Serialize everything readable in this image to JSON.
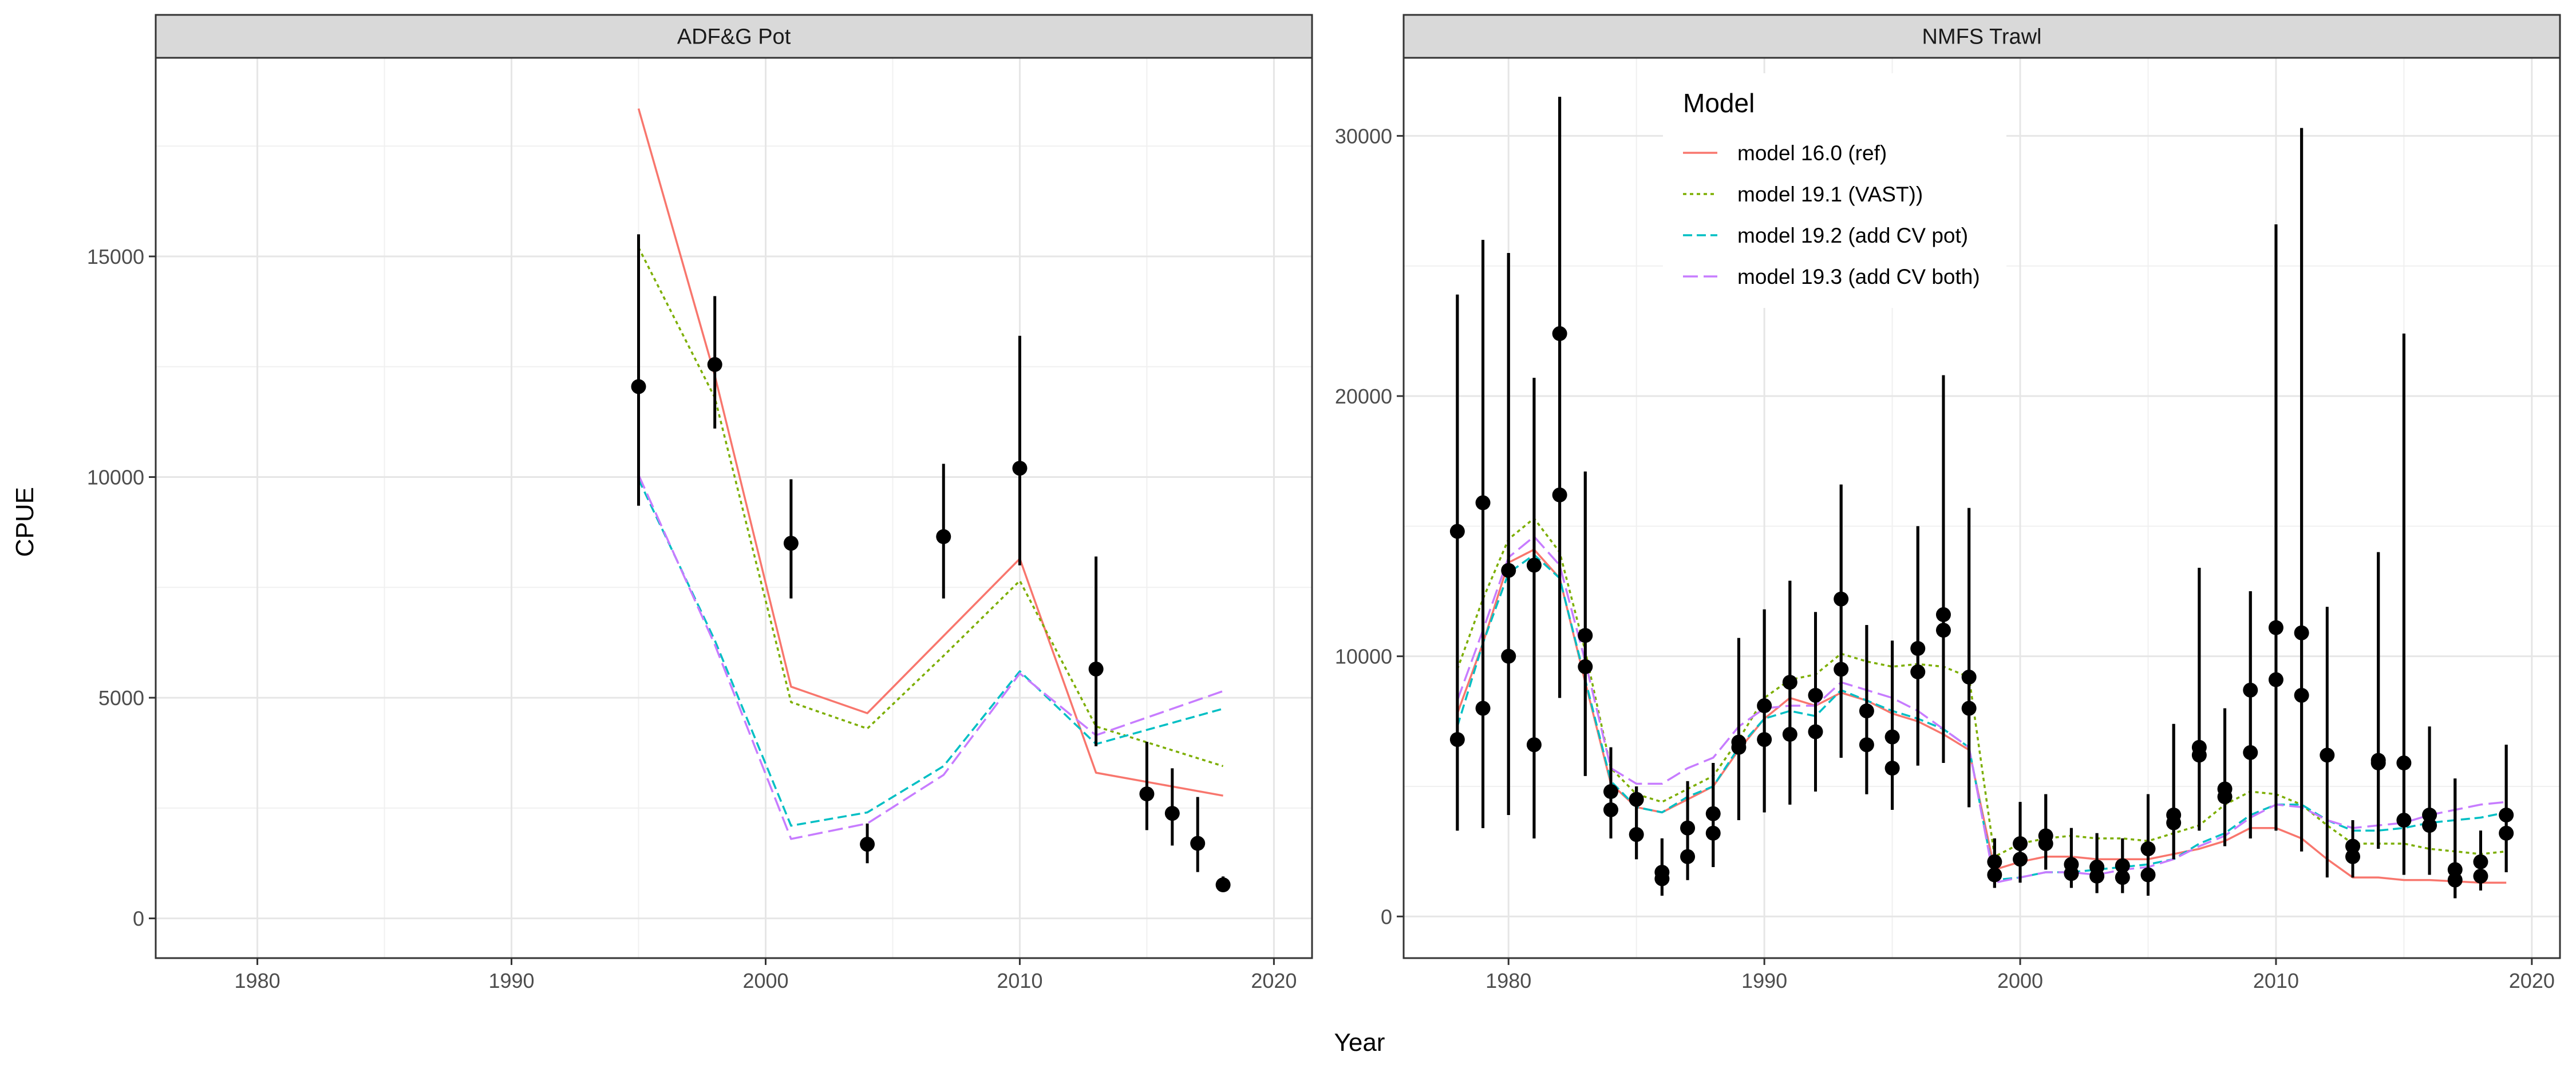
{
  "axis_titles": {
    "x": "Year",
    "y": "CPUE"
  },
  "legend": {
    "title": "Model",
    "entries": [
      {
        "label": "model 16.0 (ref)",
        "color": "#F8766D",
        "dash": "solid"
      },
      {
        "label": "model 19.1 (VAST))",
        "color": "#7CAE00",
        "dash": "dotted"
      },
      {
        "label": "model 19.2 (add CV pot)",
        "color": "#00BFC4",
        "dash": "dashed"
      },
      {
        "label": "model 19.3 (add CV both)",
        "color": "#C77CFF",
        "dash": "longdash"
      }
    ]
  },
  "chart_data": [
    {
      "type": "line",
      "title": "ADF&G Pot",
      "xlabel": "Year",
      "ylabel": "CPUE",
      "xlim": [
        1976,
        2021.5
      ],
      "ylim": [
        -900,
        19500
      ],
      "xticks": [
        1980,
        1990,
        2000,
        2010,
        2020
      ],
      "yticks": [
        0,
        5000,
        10000,
        15000
      ],
      "grid": true,
      "observed": {
        "x": [
          1995,
          1998,
          2001,
          2004,
          2007,
          2010,
          2013,
          2015,
          2016,
          2017,
          2018
        ],
        "y": [
          12050,
          12550,
          8500,
          1680,
          8650,
          10200,
          5650,
          2820,
          2380,
          1700,
          760
        ],
        "lower": [
          9350,
          11100,
          7250,
          1250,
          7250,
          8000,
          3900,
          2000,
          1650,
          1050,
          600
        ],
        "upper": [
          15500,
          14100,
          9950,
          2150,
          10300,
          13200,
          8200,
          4000,
          3400,
          2750,
          950
        ]
      },
      "series": [
        {
          "name": "model 16.0 (ref)",
          "x": [
            1995,
            1998,
            2001,
            2004,
            2007,
            2010,
            2013,
            2018
          ],
          "values": [
            18350,
            12300,
            5250,
            4650,
            6400,
            8150,
            3300,
            2780
          ]
        },
        {
          "name": "model 19.1 (VAST))",
          "x": [
            1995,
            1998,
            2001,
            2004,
            2007,
            2010,
            2013,
            2018
          ],
          "values": [
            15200,
            11800,
            4900,
            4300,
            5950,
            7650,
            4350,
            3450
          ]
        },
        {
          "name": "model 19.2 (add CV pot)",
          "x": [
            1995,
            1998,
            2001,
            2004,
            2007,
            2010,
            2013,
            2018
          ],
          "values": [
            9950,
            6300,
            2100,
            2400,
            3450,
            5600,
            3950,
            4750
          ]
        },
        {
          "name": "model 19.3 (add CV both)",
          "x": [
            1995,
            1998,
            2001,
            2004,
            2007,
            2010,
            2013,
            2018
          ],
          "values": [
            10050,
            6200,
            1800,
            2150,
            3250,
            5550,
            4150,
            5150
          ]
        }
      ]
    },
    {
      "type": "line",
      "title": "NMFS Trawl",
      "xlabel": "Year",
      "ylabel": "CPUE",
      "xlim": [
        1975.9,
        2021.1
      ],
      "ylim": [
        -1600,
        33000
      ],
      "xticks": [
        1980,
        1990,
        2000,
        2010,
        2020
      ],
      "yticks": [
        0,
        10000,
        20000,
        30000
      ],
      "grid": true,
      "legend_position": "top-left inside",
      "observed": {
        "x": [
          1978,
          1978,
          1979,
          1979,
          1980,
          1980,
          1981,
          1981,
          1982,
          1982,
          1983,
          1983,
          1984,
          1984,
          1985,
          1985,
          1986,
          1986,
          1987,
          1987,
          1988,
          1988,
          1989,
          1989,
          1990,
          1990,
          1991,
          1991,
          1992,
          1992,
          1993,
          1993,
          1994,
          1994,
          1995,
          1995,
          1996,
          1996,
          1997,
          1997,
          1998,
          1998,
          1999,
          1999,
          2000,
          2000,
          2001,
          2001,
          2002,
          2002,
          2003,
          2003,
          2004,
          2004,
          2005,
          2005,
          2006,
          2006,
          2007,
          2007,
          2008,
          2008,
          2009,
          2009,
          2010,
          2010,
          2011,
          2011,
          2012,
          2013,
          2013,
          2014,
          2014,
          2015,
          2015,
          2016,
          2016,
          2017,
          2017,
          2018,
          2018,
          2019,
          2019
        ],
        "y": [
          14800,
          6800,
          15900,
          8000,
          13300,
          10000,
          13500,
          6600,
          22400,
          16200,
          10800,
          9600,
          4800,
          4100,
          4500,
          3150,
          1700,
          1450,
          3400,
          2300,
          3950,
          3200,
          6700,
          6500,
          8100,
          6800,
          9000,
          7000,
          8500,
          7100,
          12200,
          9500,
          7900,
          6600,
          6900,
          5700,
          10300,
          9400,
          11600,
          11000,
          9200,
          8000,
          2100,
          1600,
          2800,
          2200,
          3100,
          2800,
          2000,
          1650,
          1900,
          1550,
          1950,
          1500,
          2600,
          1600,
          3900,
          3600,
          6500,
          6200,
          4900,
          4600,
          8700,
          6300,
          11100,
          9100,
          10900,
          8500,
          6200,
          2700,
          2300,
          6000,
          5900,
          5900,
          3700,
          3900,
          3500,
          1800,
          1400,
          2100,
          1550,
          3900,
          3200
        ],
        "lower": [
          3300,
          3300,
          3400,
          3400,
          3900,
          3900,
          3000,
          3000,
          8400,
          8400,
          5400,
          5400,
          3000,
          3000,
          2200,
          2200,
          800,
          800,
          1400,
          1400,
          1900,
          1900,
          3700,
          3700,
          4000,
          4000,
          4300,
          4300,
          4800,
          4800,
          6100,
          6100,
          4700,
          4700,
          4100,
          4100,
          5800,
          5800,
          5900,
          5900,
          4200,
          4200,
          1100,
          1100,
          1300,
          1300,
          1800,
          1800,
          1100,
          1100,
          900,
          900,
          900,
          900,
          800,
          800,
          2200,
          2200,
          3300,
          3300,
          2700,
          2700,
          3000,
          3000,
          3300,
          3300,
          2500,
          2500,
          1500,
          1500,
          1500,
          2600,
          2600,
          1600,
          1600,
          1600,
          1600,
          700,
          700,
          1000,
          1000,
          1700,
          1700
        ],
        "upper": [
          23900,
          23900,
          26000,
          26000,
          25500,
          25500,
          20700,
          20700,
          31500,
          31500,
          17100,
          17100,
          6500,
          6500,
          5000,
          5000,
          3000,
          3000,
          5200,
          5200,
          5900,
          5900,
          10700,
          10700,
          11800,
          11800,
          12900,
          12900,
          11700,
          11700,
          16600,
          16600,
          11200,
          11200,
          10600,
          10600,
          15000,
          15000,
          20800,
          20800,
          15700,
          15700,
          3000,
          3000,
          4400,
          4400,
          4700,
          4700,
          3400,
          3400,
          3200,
          3200,
          3000,
          3000,
          4700,
          4700,
          7400,
          7400,
          13400,
          13400,
          8000,
          8000,
          12500,
          12500,
          26600,
          26600,
          30300,
          30300,
          11900,
          3700,
          3700,
          14000,
          14000,
          22400,
          22400,
          7300,
          7300,
          5300,
          5300,
          3300,
          3300,
          6600,
          6600
        ]
      },
      "series": [
        {
          "name": "model 16.0 (ref)",
          "x": [
            1978,
            1979,
            1980,
            1981,
            1982,
            1983,
            1984,
            1985,
            1986,
            1987,
            1988,
            1989,
            1990,
            1991,
            1992,
            1993,
            1994,
            1995,
            1996,
            1997,
            1998,
            1999,
            2000,
            2001,
            2002,
            2003,
            2004,
            2005,
            2006,
            2007,
            2008,
            2009,
            2010,
            2011,
            2012,
            2013,
            2014,
            2015,
            2016,
            2017,
            2018,
            2019
          ],
          "values": [
            7800,
            10500,
            13600,
            14100,
            13000,
            9000,
            5100,
            4200,
            4000,
            4500,
            5000,
            6400,
            7600,
            8400,
            8100,
            8600,
            8300,
            7800,
            7500,
            7000,
            6400,
            1800,
            2100,
            2300,
            2300,
            2200,
            2200,
            2200,
            2400,
            2600,
            2900,
            3400,
            3400,
            3000,
            2200,
            1500,
            1500,
            1400,
            1400,
            1350,
            1300,
            1300
          ]
        },
        {
          "name": "model 19.1 (VAST))",
          "x": [
            1978,
            1979,
            1980,
            1981,
            1982,
            1983,
            1984,
            1985,
            1986,
            1987,
            1988,
            1989,
            1990,
            1991,
            1992,
            1993,
            1994,
            1995,
            1996,
            1997,
            1998,
            1999,
            2000,
            2001,
            2002,
            2003,
            2004,
            2005,
            2006,
            2007,
            2008,
            2009,
            2010,
            2011,
            2012,
            2013,
            2014,
            2015,
            2016,
            2017,
            2018,
            2019
          ],
          "values": [
            9500,
            12200,
            14500,
            15300,
            14000,
            10200,
            5700,
            4700,
            4400,
            4900,
            5400,
            6800,
            8400,
            9100,
            9300,
            10100,
            9800,
            9600,
            9700,
            9600,
            9200,
            2300,
            2800,
            3000,
            3100,
            3000,
            3000,
            2900,
            3200,
            3500,
            4300,
            4800,
            4700,
            4300,
            3500,
            2800,
            2800,
            2800,
            2600,
            2500,
            2400,
            2500
          ]
        },
        {
          "name": "model 19.2 (add CV pot)",
          "x": [
            1978,
            1979,
            1980,
            1981,
            1982,
            1983,
            1984,
            1985,
            1986,
            1987,
            1988,
            1989,
            1990,
            1991,
            1992,
            1993,
            1994,
            1995,
            1996,
            1997,
            1998,
            1999,
            2000,
            2001,
            2002,
            2003,
            2004,
            2005,
            2006,
            2007,
            2008,
            2009,
            2010,
            2011,
            2012,
            2013,
            2014,
            2015,
            2016,
            2017,
            2018,
            2019
          ],
          "values": [
            7300,
            10500,
            13200,
            13900,
            13000,
            9100,
            5200,
            4200,
            4000,
            4600,
            5000,
            6500,
            7600,
            7900,
            7700,
            8700,
            8300,
            7900,
            7600,
            7200,
            6500,
            1400,
            1500,
            1700,
            1700,
            1800,
            1900,
            2000,
            2200,
            2800,
            3200,
            3900,
            4300,
            4300,
            3700,
            3300,
            3300,
            3400,
            3600,
            3700,
            3800,
            4000
          ]
        },
        {
          "name": "model 19.3 (add CV both)",
          "x": [
            1978,
            1979,
            1980,
            1981,
            1982,
            1983,
            1984,
            1985,
            1986,
            1987,
            1988,
            1989,
            1990,
            1991,
            1992,
            1993,
            1994,
            1995,
            1996,
            1997,
            1998,
            1999,
            2000,
            2001,
            2002,
            2003,
            2004,
            2005,
            2006,
            2007,
            2008,
            2009,
            2010,
            2011,
            2012,
            2013,
            2014,
            2015,
            2016,
            2017,
            2018,
            2019
          ],
          "values": [
            8300,
            11000,
            13800,
            14600,
            13500,
            9800,
            5700,
            5100,
            5100,
            5700,
            6100,
            7300,
            8000,
            8100,
            8100,
            9000,
            8700,
            8400,
            7900,
            7200,
            6500,
            1300,
            1500,
            1700,
            1700,
            1600,
            1800,
            1900,
            2200,
            2700,
            3100,
            3800,
            4300,
            4200,
            3700,
            3400,
            3500,
            3600,
            3900,
            4100,
            4300,
            4400
          ]
        }
      ]
    }
  ]
}
